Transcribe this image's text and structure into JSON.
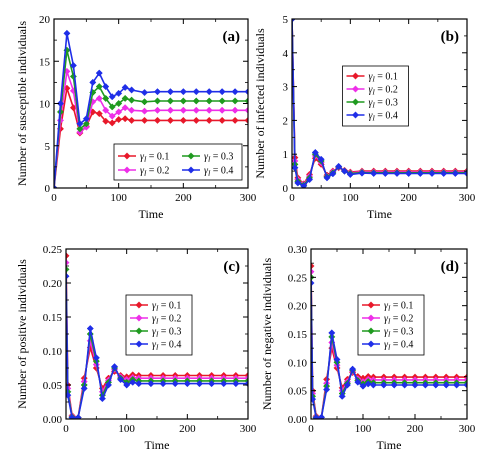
{
  "panels": [
    {
      "label": "(a)",
      "xlabel": "Time",
      "ylabel": "Number of susceptible individuals",
      "xlim": [
        0,
        300
      ],
      "ylim": [
        0,
        20
      ],
      "xticks": [
        "0",
        "100",
        "200",
        "300"
      ],
      "yticks": [
        "0",
        "5",
        "10",
        "15",
        "20"
      ],
      "legend_cols": 2,
      "legend_position": "lower-right",
      "legend_entries": [
        "γ_I = 0.1",
        "γ_I = 0.2",
        "γ_I = 0.3",
        "γ_I = 0.4"
      ]
    },
    {
      "label": "(b)",
      "xlabel": "Time",
      "ylabel": "Number of infected individuals",
      "xlim": [
        0,
        300
      ],
      "ylim": [
        0,
        5
      ],
      "xticks": [
        "0",
        "100",
        "200",
        "300"
      ],
      "yticks": [
        "0",
        "1",
        "2",
        "3",
        "4",
        "5"
      ],
      "legend_cols": 1,
      "legend_position": "upper-center",
      "legend_entries": [
        "γ_I = 0.1",
        "γ_I = 0.2",
        "γ_I = 0.3",
        "γ_I = 0.4"
      ]
    },
    {
      "label": "(c)",
      "xlabel": "Time",
      "ylabel": "Number of positive individuals",
      "xlim": [
        0,
        300
      ],
      "ylim": [
        0,
        0.25
      ],
      "xticks": [
        "0",
        "100",
        "200",
        "300"
      ],
      "yticks": [
        "0.00",
        "0.05",
        "0.10",
        "0.15",
        "0.20",
        "0.25"
      ],
      "legend_cols": 1,
      "legend_position": "center",
      "legend_entries": [
        "γ_I = 0.1",
        "γ_I = 0.2",
        "γ_I = 0.3",
        "γ_I = 0.4"
      ]
    },
    {
      "label": "(d)",
      "xlabel": "Time",
      "ylabel": "Number of negative individuals",
      "xlim": [
        0,
        300
      ],
      "ylim": [
        0,
        0.3
      ],
      "xticks": [
        "0",
        "100",
        "200",
        "300"
      ],
      "yticks": [
        "0.00",
        "0.05",
        "0.10",
        "0.15",
        "0.20",
        "0.25",
        "0.30"
      ],
      "legend_cols": 1,
      "legend_position": "center",
      "legend_entries": [
        "γ_I = 0.1",
        "γ_I = 0.2",
        "γ_I = 0.3",
        "γ_I = 0.4"
      ]
    }
  ],
  "colors": [
    "#e8182a",
    "#ee2ee8",
    "#1f9a1f",
    "#1f2ee8"
  ],
  "chart_data": [
    {
      "type": "line",
      "title": "(a)",
      "xlabel": "Time",
      "ylabel": "Number of susceptible individuals",
      "xlim": [
        0,
        300
      ],
      "ylim": [
        0,
        20
      ],
      "series": [
        {
          "name": "γ_I = 0.1",
          "x": [
            0,
            10,
            20,
            30,
            40,
            50,
            60,
            70,
            80,
            90,
            100,
            110,
            120,
            140,
            160,
            180,
            200,
            220,
            240,
            260,
            280,
            300
          ],
          "y": [
            0,
            7,
            11.8,
            9.5,
            6.5,
            7.3,
            9.0,
            8.8,
            7.9,
            7.7,
            8.1,
            8.2,
            8.0,
            8.0,
            8.0,
            8.0,
            8.0,
            8.0,
            8.0,
            8.0,
            8.0,
            8.0
          ]
        },
        {
          "name": "γ_I = 0.2",
          "x": [
            0,
            10,
            20,
            30,
            40,
            50,
            60,
            70,
            80,
            90,
            100,
            110,
            120,
            140,
            160,
            180,
            200,
            220,
            240,
            260,
            280,
            300
          ],
          "y": [
            0,
            8,
            13.8,
            11.5,
            6.6,
            7.2,
            10.2,
            10.6,
            9.2,
            8.5,
            9.0,
            9.5,
            9.2,
            9.1,
            9.2,
            9.2,
            9.2,
            9.2,
            9.2,
            9.2,
            9.2,
            9.2
          ]
        },
        {
          "name": "γ_I = 0.3",
          "x": [
            0,
            10,
            20,
            30,
            40,
            50,
            60,
            70,
            80,
            90,
            100,
            110,
            120,
            140,
            160,
            180,
            200,
            220,
            240,
            260,
            280,
            300
          ],
          "y": [
            0,
            9,
            16.3,
            13.2,
            7.0,
            7.6,
            11.3,
            12.0,
            10.6,
            9.6,
            10.0,
            10.6,
            10.4,
            10.2,
            10.3,
            10.3,
            10.3,
            10.3,
            10.3,
            10.3,
            10.3,
            10.3
          ]
        },
        {
          "name": "γ_I = 0.4",
          "x": [
            0,
            10,
            20,
            30,
            40,
            50,
            60,
            70,
            80,
            90,
            100,
            110,
            120,
            140,
            160,
            180,
            200,
            220,
            240,
            260,
            280,
            300
          ],
          "y": [
            0,
            10,
            18.3,
            14.5,
            7.6,
            8.2,
            12.5,
            13.6,
            12.0,
            10.8,
            11.2,
            11.9,
            11.6,
            11.3,
            11.4,
            11.4,
            11.4,
            11.4,
            11.4,
            11.4,
            11.4,
            11.4
          ]
        }
      ]
    },
    {
      "type": "line",
      "title": "(b)",
      "xlabel": "Time",
      "ylabel": "Number of infected individuals",
      "xlim": [
        0,
        300
      ],
      "ylim": [
        0,
        5
      ],
      "series": [
        {
          "name": "γ_I = 0.1",
          "x": [
            0,
            5,
            10,
            20,
            30,
            40,
            50,
            60,
            70,
            80,
            90,
            100,
            120,
            140,
            160,
            180,
            200,
            220,
            240,
            260,
            280,
            300
          ],
          "y": [
            5,
            0.9,
            0.3,
            0.12,
            0.4,
            0.88,
            0.7,
            0.38,
            0.5,
            0.6,
            0.52,
            0.47,
            0.5,
            0.5,
            0.5,
            0.5,
            0.5,
            0.5,
            0.5,
            0.5,
            0.5,
            0.5
          ]
        },
        {
          "name": "γ_I = 0.2",
          "x": [
            0,
            5,
            10,
            20,
            30,
            40,
            50,
            60,
            70,
            80,
            90,
            100,
            120,
            140,
            160,
            180,
            200,
            220,
            240,
            260,
            280,
            300
          ],
          "y": [
            5,
            0.8,
            0.25,
            0.1,
            0.35,
            0.95,
            0.75,
            0.35,
            0.48,
            0.62,
            0.5,
            0.45,
            0.48,
            0.47,
            0.47,
            0.47,
            0.47,
            0.47,
            0.47,
            0.47,
            0.47,
            0.47
          ]
        },
        {
          "name": "γ_I = 0.3",
          "x": [
            0,
            5,
            10,
            20,
            30,
            40,
            50,
            60,
            70,
            80,
            90,
            100,
            120,
            140,
            160,
            180,
            200,
            220,
            240,
            260,
            280,
            300
          ],
          "y": [
            5,
            0.7,
            0.2,
            0.08,
            0.3,
            1.0,
            0.8,
            0.33,
            0.45,
            0.63,
            0.5,
            0.43,
            0.46,
            0.45,
            0.45,
            0.45,
            0.45,
            0.45,
            0.45,
            0.45,
            0.45,
            0.45
          ]
        },
        {
          "name": "γ_I = 0.4",
          "x": [
            0,
            5,
            10,
            20,
            30,
            40,
            50,
            60,
            70,
            80,
            90,
            100,
            120,
            140,
            160,
            180,
            200,
            220,
            240,
            260,
            280,
            300
          ],
          "y": [
            5,
            0.6,
            0.15,
            0.06,
            0.25,
            1.05,
            0.85,
            0.3,
            0.42,
            0.64,
            0.5,
            0.4,
            0.44,
            0.43,
            0.43,
            0.43,
            0.43,
            0.43,
            0.43,
            0.43,
            0.43,
            0.43
          ]
        }
      ]
    },
    {
      "type": "line",
      "title": "(c)",
      "xlabel": "Time",
      "ylabel": "Number of positive individuals",
      "xlim": [
        0,
        300
      ],
      "ylim": [
        0,
        0.25
      ],
      "series": [
        {
          "name": "γ_I = 0.1",
          "x": [
            0,
            3,
            10,
            20,
            30,
            40,
            50,
            60,
            70,
            80,
            90,
            100,
            110,
            120,
            140,
            160,
            180,
            200,
            220,
            240,
            260,
            280,
            300
          ],
          "y": [
            0.24,
            0.05,
            0.005,
            0.002,
            0.06,
            0.105,
            0.075,
            0.045,
            0.06,
            0.07,
            0.064,
            0.062,
            0.065,
            0.064,
            0.064,
            0.064,
            0.064,
            0.064,
            0.064,
            0.064,
            0.064,
            0.064,
            0.064
          ]
        },
        {
          "name": "γ_I = 0.2",
          "x": [
            0,
            3,
            10,
            20,
            30,
            40,
            50,
            60,
            70,
            80,
            90,
            100,
            110,
            120,
            140,
            160,
            180,
            200,
            220,
            240,
            260,
            280,
            300
          ],
          "y": [
            0.23,
            0.045,
            0.004,
            0.002,
            0.055,
            0.115,
            0.08,
            0.04,
            0.057,
            0.073,
            0.062,
            0.058,
            0.061,
            0.06,
            0.06,
            0.06,
            0.06,
            0.06,
            0.06,
            0.06,
            0.06,
            0.06,
            0.06
          ]
        },
        {
          "name": "γ_I = 0.3",
          "x": [
            0,
            3,
            10,
            20,
            30,
            40,
            50,
            60,
            70,
            80,
            90,
            100,
            110,
            120,
            140,
            160,
            180,
            200,
            220,
            240,
            260,
            280,
            300
          ],
          "y": [
            0.22,
            0.04,
            0.003,
            0.002,
            0.05,
            0.125,
            0.085,
            0.035,
            0.054,
            0.075,
            0.06,
            0.054,
            0.058,
            0.056,
            0.056,
            0.056,
            0.056,
            0.056,
            0.056,
            0.056,
            0.056,
            0.056,
            0.056
          ]
        },
        {
          "name": "γ_I = 0.4",
          "x": [
            0,
            3,
            10,
            20,
            30,
            40,
            50,
            60,
            70,
            80,
            90,
            100,
            110,
            120,
            140,
            160,
            180,
            200,
            220,
            240,
            260,
            280,
            300
          ],
          "y": [
            0.21,
            0.035,
            0.002,
            0.002,
            0.045,
            0.133,
            0.09,
            0.03,
            0.05,
            0.077,
            0.058,
            0.05,
            0.054,
            0.052,
            0.052,
            0.052,
            0.052,
            0.052,
            0.052,
            0.052,
            0.052,
            0.052,
            0.052
          ]
        }
      ]
    },
    {
      "type": "line",
      "title": "(d)",
      "xlabel": "Time",
      "ylabel": "Number of negative individuals",
      "xlim": [
        0,
        300
      ],
      "ylim": [
        0,
        0.3
      ],
      "series": [
        {
          "name": "γ_I = 0.1",
          "x": [
            0,
            3,
            10,
            20,
            30,
            40,
            50,
            60,
            70,
            80,
            90,
            100,
            110,
            120,
            140,
            160,
            180,
            200,
            220,
            240,
            260,
            280,
            300
          ],
          "y": [
            0.27,
            0.05,
            0.005,
            0.003,
            0.07,
            0.125,
            0.09,
            0.055,
            0.07,
            0.082,
            0.075,
            0.072,
            0.075,
            0.074,
            0.074,
            0.074,
            0.074,
            0.074,
            0.074,
            0.074,
            0.074,
            0.074,
            0.074
          ]
        },
        {
          "name": "γ_I = 0.2",
          "x": [
            0,
            3,
            10,
            20,
            30,
            40,
            50,
            60,
            70,
            80,
            90,
            100,
            110,
            120,
            140,
            160,
            180,
            200,
            220,
            240,
            260,
            280,
            300
          ],
          "y": [
            0.26,
            0.045,
            0.004,
            0.003,
            0.063,
            0.135,
            0.095,
            0.05,
            0.066,
            0.084,
            0.071,
            0.066,
            0.07,
            0.069,
            0.069,
            0.069,
            0.069,
            0.069,
            0.069,
            0.069,
            0.069,
            0.069,
            0.069
          ]
        },
        {
          "name": "γ_I = 0.3",
          "x": [
            0,
            3,
            10,
            20,
            30,
            40,
            50,
            60,
            70,
            80,
            90,
            100,
            110,
            120,
            140,
            160,
            180,
            200,
            220,
            240,
            260,
            280,
            300
          ],
          "y": [
            0.25,
            0.04,
            0.003,
            0.003,
            0.058,
            0.145,
            0.1,
            0.045,
            0.063,
            0.086,
            0.068,
            0.062,
            0.066,
            0.064,
            0.064,
            0.064,
            0.064,
            0.064,
            0.064,
            0.064,
            0.064,
            0.064,
            0.064
          ]
        },
        {
          "name": "γ_I = 0.4",
          "x": [
            0,
            3,
            10,
            20,
            30,
            40,
            50,
            60,
            70,
            80,
            90,
            100,
            110,
            120,
            140,
            160,
            180,
            200,
            220,
            240,
            260,
            280,
            300
          ],
          "y": [
            0.24,
            0.035,
            0.002,
            0.003,
            0.052,
            0.152,
            0.105,
            0.04,
            0.06,
            0.088,
            0.065,
            0.058,
            0.062,
            0.06,
            0.06,
            0.06,
            0.06,
            0.06,
            0.06,
            0.06,
            0.06,
            0.06,
            0.06
          ]
        }
      ]
    }
  ]
}
